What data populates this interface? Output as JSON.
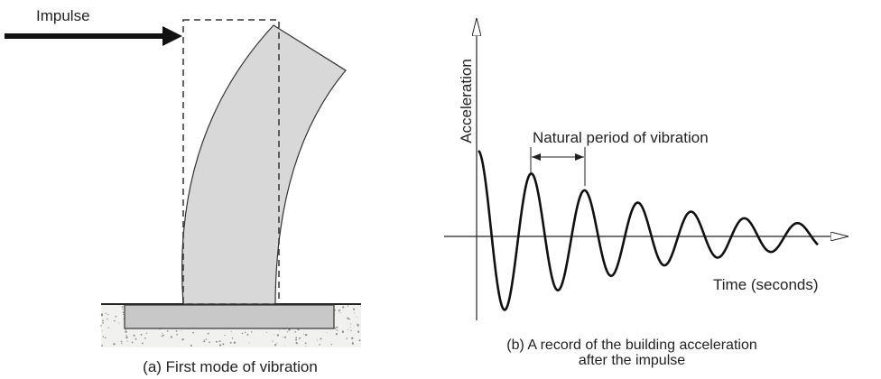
{
  "left_panel": {
    "arrow_label": "Impulse",
    "caption": "(a) First mode of vibration"
  },
  "right_panel": {
    "y_axis_label": "Acceleration",
    "annotation": "Natural period of vibration",
    "x_axis_label": "Time (seconds)",
    "caption": [
      "(b) A record of the building acceleration",
      "after the impulse"
    ]
  }
}
